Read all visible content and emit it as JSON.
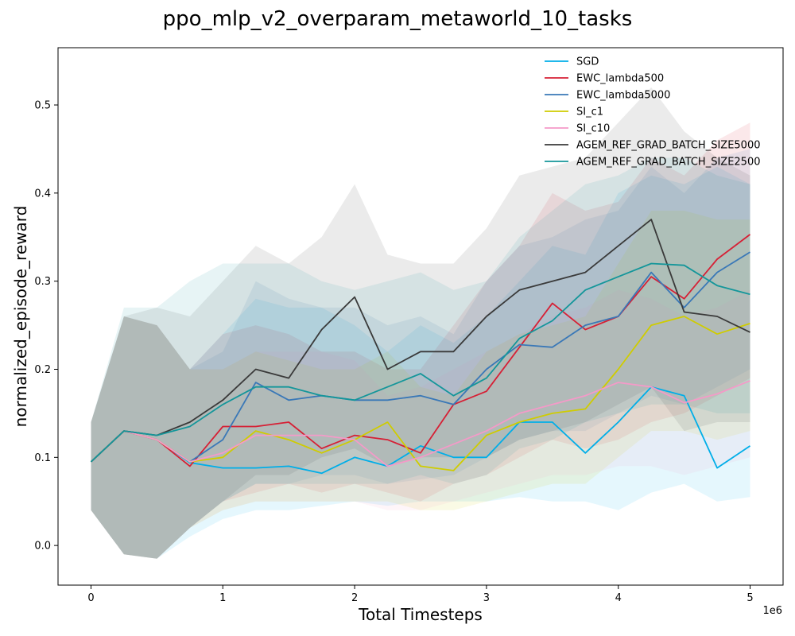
{
  "chart_data": {
    "type": "line",
    "title": "ppo_mlp_v2_overparam_metaworld_10_tasks",
    "xlabel": "Total Timesteps",
    "ylabel": "normalized_episode_reward",
    "x_offset_label": "1e6",
    "xlim": [
      -0.25,
      5.25
    ],
    "ylim": [
      -0.045,
      0.565
    ],
    "xticks": [
      0,
      1,
      2,
      3,
      4,
      5
    ],
    "xtick_labels": [
      "0",
      "1",
      "2",
      "3",
      "4",
      "5"
    ],
    "yticks": [
      0.0,
      0.1,
      0.2,
      0.3,
      0.4,
      0.5
    ],
    "ytick_labels": [
      "0.0",
      "0.1",
      "0.2",
      "0.3",
      "0.4",
      "0.5"
    ],
    "x_unit_multiplier": 1000000,
    "grid": false,
    "legend_position": "top-right",
    "x": [
      0,
      0.25,
      0.5,
      0.75,
      1.0,
      1.25,
      1.5,
      1.75,
      2.0,
      2.25,
      2.5,
      2.75,
      3.0,
      3.25,
      3.5,
      3.75,
      4.0,
      4.25,
      4.5,
      4.75,
      5.0
    ],
    "series": [
      {
        "name": "SGD",
        "color": "#00aee8",
        "values": [
          0.095,
          0.13,
          0.12,
          0.094,
          0.088,
          0.088,
          0.09,
          0.082,
          0.1,
          0.09,
          0.113,
          0.1,
          0.1,
          0.14,
          0.14,
          0.105,
          0.14,
          0.18,
          0.17,
          0.088,
          0.113
        ],
        "lower": [
          0.04,
          -0.01,
          -0.015,
          0.01,
          0.03,
          0.04,
          0.04,
          0.045,
          0.05,
          0.045,
          0.05,
          0.05,
          0.05,
          0.055,
          0.05,
          0.05,
          0.04,
          0.06,
          0.07,
          0.05,
          0.055
        ],
        "upper": [
          0.14,
          0.26,
          0.25,
          0.2,
          0.24,
          0.28,
          0.27,
          0.27,
          0.25,
          0.22,
          0.25,
          0.23,
          0.26,
          0.3,
          0.34,
          0.33,
          0.4,
          0.42,
          0.41,
          0.43,
          0.41
        ]
      },
      {
        "name": "EWC_lambda500",
        "color": "#d62035",
        "values": [
          0.095,
          0.13,
          0.12,
          0.09,
          0.135,
          0.135,
          0.14,
          0.11,
          0.125,
          0.12,
          0.105,
          0.16,
          0.175,
          0.225,
          0.275,
          0.245,
          0.26,
          0.305,
          0.28,
          0.325,
          0.353
        ],
        "lower": [
          0.04,
          -0.01,
          -0.015,
          0.02,
          0.05,
          0.06,
          0.07,
          0.06,
          0.07,
          0.06,
          0.05,
          0.07,
          0.08,
          0.1,
          0.12,
          0.11,
          0.12,
          0.14,
          0.15,
          0.17,
          0.19
        ],
        "upper": [
          0.14,
          0.26,
          0.25,
          0.2,
          0.24,
          0.25,
          0.24,
          0.22,
          0.22,
          0.2,
          0.2,
          0.25,
          0.3,
          0.34,
          0.4,
          0.38,
          0.39,
          0.44,
          0.42,
          0.46,
          0.48
        ]
      },
      {
        "name": "EWC_lambda5000",
        "color": "#3a78b7",
        "values": [
          0.095,
          0.13,
          0.12,
          0.095,
          0.12,
          0.185,
          0.165,
          0.17,
          0.165,
          0.165,
          0.17,
          0.16,
          0.2,
          0.228,
          0.225,
          0.25,
          0.26,
          0.31,
          0.27,
          0.31,
          0.333
        ],
        "lower": [
          0.04,
          -0.01,
          -0.015,
          0.02,
          0.05,
          0.07,
          0.07,
          0.08,
          0.08,
          0.07,
          0.075,
          0.08,
          0.1,
          0.12,
          0.13,
          0.13,
          0.15,
          0.17,
          0.16,
          0.18,
          0.2
        ],
        "upper": [
          0.14,
          0.26,
          0.25,
          0.2,
          0.22,
          0.3,
          0.28,
          0.27,
          0.27,
          0.25,
          0.26,
          0.24,
          0.3,
          0.34,
          0.35,
          0.37,
          0.38,
          0.43,
          0.4,
          0.44,
          0.45
        ]
      },
      {
        "name": "SI_c1",
        "color": "#cfcc00",
        "values": [
          0.095,
          0.13,
          0.12,
          0.095,
          0.1,
          0.13,
          0.12,
          0.105,
          0.12,
          0.14,
          0.09,
          0.085,
          0.125,
          0.14,
          0.15,
          0.155,
          0.2,
          0.25,
          0.26,
          0.24,
          0.252
        ],
        "lower": [
          0.04,
          -0.01,
          -0.015,
          0.02,
          0.04,
          0.05,
          0.05,
          0.05,
          0.05,
          0.05,
          0.04,
          0.04,
          0.05,
          0.06,
          0.07,
          0.07,
          0.1,
          0.13,
          0.13,
          0.12,
          0.13
        ],
        "upper": [
          0.14,
          0.26,
          0.25,
          0.2,
          0.2,
          0.22,
          0.21,
          0.2,
          0.2,
          0.22,
          0.18,
          0.17,
          0.22,
          0.24,
          0.25,
          0.26,
          0.32,
          0.38,
          0.38,
          0.37,
          0.37
        ]
      },
      {
        "name": "SI_c10",
        "color": "#f49ac8",
        "values": [
          0.095,
          0.13,
          0.12,
          0.095,
          0.105,
          0.125,
          0.125,
          0.125,
          0.12,
          0.09,
          0.1,
          0.115,
          0.13,
          0.15,
          0.16,
          0.17,
          0.185,
          0.18,
          0.162,
          0.172,
          0.187
        ],
        "lower": [
          0.04,
          -0.01,
          -0.015,
          0.02,
          0.04,
          0.05,
          0.05,
          0.05,
          0.05,
          0.04,
          0.04,
          0.05,
          0.06,
          0.07,
          0.08,
          0.08,
          0.09,
          0.09,
          0.08,
          0.09,
          0.1
        ],
        "upper": [
          0.14,
          0.26,
          0.25,
          0.2,
          0.2,
          0.22,
          0.22,
          0.22,
          0.21,
          0.17,
          0.18,
          0.2,
          0.22,
          0.24,
          0.26,
          0.27,
          0.29,
          0.28,
          0.26,
          0.27,
          0.29
        ]
      },
      {
        "name": "AGEM_REF_GRAD_BATCH_SIZE5000",
        "color": "#3a3a3a",
        "values": [
          0.095,
          0.13,
          0.125,
          0.14,
          0.165,
          0.2,
          0.19,
          0.245,
          0.282,
          0.2,
          0.22,
          0.22,
          0.26,
          0.29,
          0.3,
          0.31,
          0.34,
          0.37,
          0.265,
          0.26,
          0.242
        ],
        "lower": [
          0.04,
          -0.01,
          -0.015,
          0.02,
          0.05,
          0.08,
          0.08,
          0.1,
          0.11,
          0.09,
          0.1,
          0.1,
          0.1,
          0.12,
          0.13,
          0.14,
          0.16,
          0.18,
          0.13,
          0.14,
          0.14
        ],
        "upper": [
          0.14,
          0.26,
          0.27,
          0.26,
          0.3,
          0.34,
          0.32,
          0.35,
          0.41,
          0.33,
          0.32,
          0.32,
          0.36,
          0.42,
          0.43,
          0.44,
          0.48,
          0.52,
          0.47,
          0.44,
          0.42
        ]
      },
      {
        "name": "AGEM_REF_GRAD_BATCH_SIZE2500",
        "color": "#14969a",
        "values": [
          0.095,
          0.13,
          0.125,
          0.135,
          0.16,
          0.18,
          0.18,
          0.17,
          0.165,
          0.18,
          0.195,
          0.17,
          0.19,
          0.235,
          0.255,
          0.29,
          0.305,
          0.32,
          0.318,
          0.295,
          0.285
        ],
        "lower": [
          0.04,
          -0.01,
          -0.015,
          0.02,
          0.05,
          0.07,
          0.07,
          0.07,
          0.07,
          0.07,
          0.08,
          0.07,
          0.08,
          0.11,
          0.12,
          0.14,
          0.15,
          0.16,
          0.16,
          0.15,
          0.15
        ],
        "upper": [
          0.14,
          0.27,
          0.27,
          0.3,
          0.32,
          0.32,
          0.32,
          0.3,
          0.29,
          0.3,
          0.31,
          0.29,
          0.3,
          0.35,
          0.38,
          0.41,
          0.42,
          0.44,
          0.44,
          0.42,
          0.41
        ]
      }
    ]
  }
}
